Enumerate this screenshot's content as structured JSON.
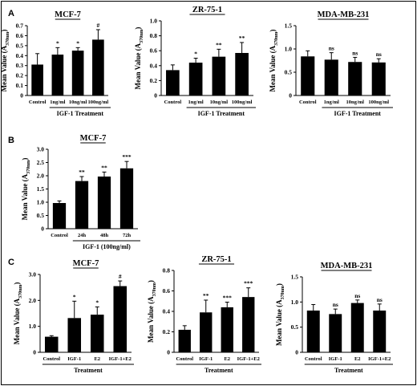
{
  "panels": [
    {
      "letter": "A"
    },
    {
      "letter": "B"
    },
    {
      "letter": "C"
    }
  ],
  "chart_data": [
    {
      "panel": "A",
      "type": "bar",
      "title": "MCF-7",
      "ylabel": "Mean Value (A370nm)",
      "xlabel": "IGF-1 Treatment",
      "categories": [
        "Control",
        "1ng/ml",
        "10ng/ml",
        "100ng/ml"
      ],
      "values": [
        0.31,
        0.41,
        0.45,
        0.56
      ],
      "errors": [
        0.11,
        0.07,
        0.03,
        0.1
      ],
      "significance": [
        "",
        "*",
        "*",
        "#"
      ],
      "ylim": [
        0,
        0.7
      ],
      "yticks": [
        0,
        0.1,
        0.2,
        0.3,
        0.4,
        0.5,
        0.6,
        0.7
      ],
      "treatment_start": 1
    },
    {
      "panel": "A",
      "type": "bar",
      "title": "ZR-75-1",
      "ylabel": "Mean Value (A370nm)",
      "xlabel": "IGF-1 Treatment",
      "categories": [
        "Control",
        "1ng/ml",
        "10ng/ml",
        "100ng/ml"
      ],
      "values": [
        0.34,
        0.44,
        0.52,
        0.57
      ],
      "errors": [
        0.07,
        0.06,
        0.1,
        0.14
      ],
      "significance": [
        "",
        "*",
        "**",
        "**"
      ],
      "ylim": [
        0,
        1.0
      ],
      "yticks": [
        0,
        0.2,
        0.4,
        0.6,
        0.8,
        1.0
      ],
      "treatment_start": 1
    },
    {
      "panel": "A",
      "type": "bar",
      "title": "MDA-MB-231",
      "ylabel": "Mean Value (A370nm)",
      "xlabel": "IGF-1 Treatment",
      "categories": [
        "Control",
        "1ng/ml",
        "10ng/ml",
        "100ng/ml"
      ],
      "values": [
        0.84,
        0.77,
        0.72,
        0.71
      ],
      "errors": [
        0.12,
        0.15,
        0.1,
        0.08
      ],
      "significance": [
        "",
        "ns",
        "ns",
        "ns"
      ],
      "ylim": [
        0,
        1.5
      ],
      "yticks": [
        0,
        0.5,
        1.0,
        1.5
      ],
      "treatment_start": 1
    },
    {
      "panel": "B",
      "type": "bar",
      "title": "MCF-7",
      "ylabel": "Mean Value (A370nm)",
      "xlabel": "IGF-1 (100ng/ml)",
      "categories": [
        "Control",
        "24h",
        "48h",
        "72h"
      ],
      "values": [
        0.97,
        1.8,
        1.97,
        2.28
      ],
      "errors": [
        0.08,
        0.17,
        0.17,
        0.26
      ],
      "significance": [
        "",
        "**",
        "**",
        "***"
      ],
      "ylim": [
        0,
        3.0
      ],
      "yticks": [
        0,
        0.5,
        1.0,
        1.5,
        2.0,
        2.5,
        3.0
      ],
      "treatment_start": 1
    },
    {
      "panel": "C",
      "type": "bar",
      "title": "MCF-7",
      "ylabel": "Mean Value (A370nm)",
      "xlabel": "Treatment",
      "categories": [
        "Control",
        "IGF-1",
        "E2",
        "IGF-1+E2"
      ],
      "values": [
        0.6,
        1.32,
        1.45,
        2.55
      ],
      "errors": [
        0.04,
        0.65,
        0.3,
        0.2
      ],
      "significance": [
        "",
        "*",
        "*",
        "#"
      ],
      "ylim": [
        0,
        3.0
      ],
      "yticks": [
        0,
        1.0,
        2.0,
        3.0
      ],
      "treatment_start": 0
    },
    {
      "panel": "C",
      "type": "bar",
      "title": "ZR-75-1",
      "ylabel": "Mean Value (A370nm)",
      "xlabel": "Treatment",
      "categories": [
        "Control",
        "IGF-1",
        "E2",
        "IGF-1+E2"
      ],
      "values": [
        0.22,
        0.39,
        0.44,
        0.54
      ],
      "errors": [
        0.04,
        0.12,
        0.05,
        0.09
      ],
      "significance": [
        "",
        "**",
        "***",
        "***"
      ],
      "ylim": [
        0,
        0.8
      ],
      "yticks": [
        0,
        0.2,
        0.4,
        0.6,
        0.8
      ],
      "treatment_start": 0
    },
    {
      "panel": "C",
      "type": "bar",
      "title": "MDA-MB-231",
      "ylabel": "Mean Value (A370nm)",
      "xlabel": "Treatment",
      "categories": [
        "Control",
        "IGF-1",
        "E2",
        "IGF-1+E2"
      ],
      "values": [
        0.83,
        0.76,
        0.98,
        0.83
      ],
      "errors": [
        0.12,
        0.1,
        0.06,
        0.13
      ],
      "significance": [
        "",
        "ns",
        "ns",
        "ns"
      ],
      "ylim": [
        0,
        1.5
      ],
      "yticks": [
        0,
        0.5,
        1.0,
        1.5
      ],
      "treatment_start": 0
    }
  ]
}
